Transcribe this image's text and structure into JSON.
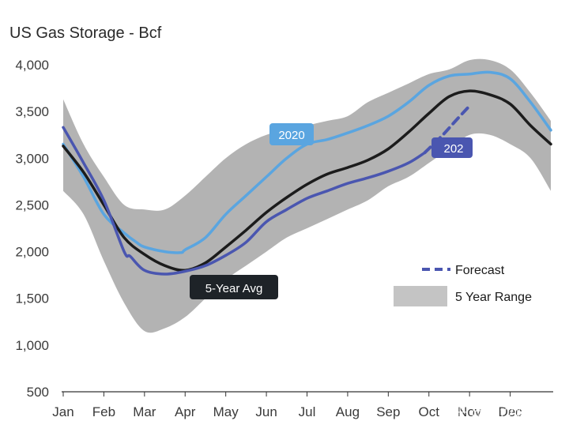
{
  "chart_data": {
    "type": "line",
    "title": "US Gas Storage - Bcf",
    "xlabel": "",
    "ylabel": "",
    "ylim": [
      500,
      4000
    ],
    "yticks": [
      "4,000",
      "3,500",
      "3,000",
      "2,500",
      "2,000",
      "1,500",
      "1,000",
      "500"
    ],
    "categories": [
      "Jan",
      "Feb",
      "Mar",
      "Apr",
      "May",
      "Jun",
      "Jul",
      "Aug",
      "Sep",
      "Oct",
      "Nov",
      "Dec"
    ],
    "grid": false,
    "legend_position": "right",
    "range": {
      "name": "5 Year Range",
      "color": "#b3b3b3",
      "x": [
        0,
        0.5,
        1,
        1.5,
        2,
        2.5,
        3,
        3.5,
        4,
        4.5,
        5,
        5.5,
        6,
        6.5,
        7,
        7.5,
        8,
        8.5,
        9,
        9.5,
        10,
        10.5,
        11,
        11.5,
        12
      ],
      "upper": [
        3630,
        3150,
        2800,
        2500,
        2450,
        2450,
        2600,
        2800,
        3000,
        3150,
        3250,
        3300,
        3350,
        3400,
        3450,
        3600,
        3700,
        3800,
        3900,
        3950,
        4050,
        4050,
        3950,
        3700,
        3400
      ],
      "lower": [
        2650,
        2400,
        1900,
        1450,
        1150,
        1180,
        1300,
        1500,
        1700,
        1850,
        2000,
        2150,
        2250,
        2350,
        2450,
        2550,
        2700,
        2800,
        2950,
        3100,
        3250,
        3250,
        3150,
        3000,
        2650
      ]
    },
    "series": [
      {
        "name": "2020",
        "color": "#5aa5e0",
        "x": [
          0,
          0.5,
          1,
          1.5,
          1.8,
          2,
          2.5,
          2.9,
          3,
          3.5,
          4,
          4.5,
          5,
          5.5,
          6,
          6.5,
          7,
          7.5,
          8,
          8.5,
          9,
          9.5,
          10,
          10.5,
          11,
          11.5,
          12
        ],
        "y": [
          3150,
          2800,
          2400,
          2200,
          2100,
          2050,
          2000,
          1990,
          2020,
          2150,
          2400,
          2600,
          2800,
          3000,
          3150,
          3200,
          3270,
          3350,
          3450,
          3600,
          3780,
          3880,
          3900,
          3920,
          3850,
          3600,
          3300
        ]
      },
      {
        "name": "5-Year Avg",
        "color": "#1c1c1c",
        "x": [
          0,
          0.5,
          1,
          1.5,
          2,
          2.5,
          3,
          3.5,
          4,
          4.5,
          5,
          5.5,
          6,
          6.5,
          7,
          7.5,
          8,
          8.5,
          9,
          9.5,
          10,
          10.5,
          11,
          11.5,
          12
        ],
        "y": [
          3130,
          2850,
          2500,
          2150,
          1970,
          1850,
          1800,
          1880,
          2050,
          2230,
          2420,
          2580,
          2720,
          2830,
          2900,
          2980,
          3100,
          3280,
          3480,
          3660,
          3720,
          3680,
          3580,
          3350,
          3150
        ]
      },
      {
        "name": "202",
        "color": "#4a56b0",
        "x": [
          0,
          0.5,
          1,
          1.5,
          1.65,
          2,
          2.5,
          3,
          3.5,
          4,
          4.5,
          5,
          5.5,
          6,
          6.5,
          7,
          7.5,
          8,
          8.5,
          8.9
        ],
        "y": [
          3330,
          2950,
          2550,
          2000,
          1950,
          1800,
          1760,
          1790,
          1850,
          1960,
          2100,
          2320,
          2450,
          2570,
          2650,
          2730,
          2790,
          2860,
          2950,
          3060
        ]
      },
      {
        "name": "Forecast",
        "color": "#4a56b0",
        "dashed": true,
        "x": [
          8.9,
          9.3,
          9.7,
          10.0
        ],
        "y": [
          3060,
          3230,
          3420,
          3560
        ]
      }
    ],
    "annotations": [
      "2020",
      "202",
      "5-Year Avg"
    ],
    "legend": [
      "Forecast",
      "5 Year Range"
    ]
  },
  "watermark": "知乎 @寒沙财情"
}
